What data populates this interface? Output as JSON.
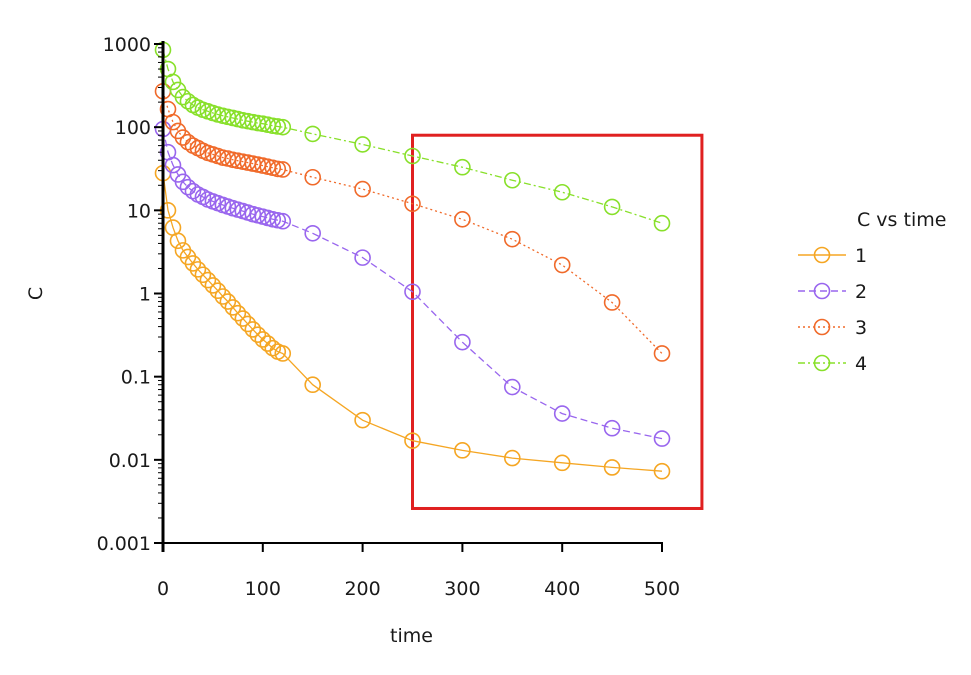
{
  "chart_data": {
    "type": "line",
    "title": "",
    "xlabel": "time",
    "ylabel": "C",
    "xlim": [
      0,
      500
    ],
    "ylim": [
      0.001,
      1000
    ],
    "yscale": "log",
    "x_ticks": [
      0,
      100,
      200,
      300,
      400,
      500
    ],
    "x_tick_labels": [
      "0",
      "100",
      "200",
      "300",
      "400",
      "500"
    ],
    "y_ticks": [
      0.001,
      0.01,
      0.1,
      1,
      10,
      100,
      1000
    ],
    "y_tick_labels": [
      "0.001",
      "0.01",
      "0.1",
      "1",
      "10",
      "100",
      "1000"
    ],
    "grid": false,
    "legend": {
      "title": "C vs time",
      "placement": "right"
    },
    "highlight_box": {
      "color": "#e02020",
      "x_range": [
        250,
        540
      ],
      "y_range": [
        0.0026,
        80
      ]
    },
    "series": [
      {
        "name": "1",
        "color": "#f5a623",
        "line_style": "solid",
        "x": [
          0,
          5,
          10,
          15,
          20,
          25,
          30,
          35,
          40,
          45,
          50,
          55,
          60,
          65,
          70,
          75,
          80,
          85,
          90,
          95,
          100,
          105,
          110,
          115,
          120,
          150,
          200,
          250,
          300,
          350,
          400,
          450,
          500
        ],
        "y": [
          28,
          10,
          6.2,
          4.3,
          3.3,
          2.75,
          2.3,
          1.95,
          1.68,
          1.45,
          1.25,
          1.08,
          0.92,
          0.8,
          0.68,
          0.58,
          0.5,
          0.43,
          0.37,
          0.32,
          0.28,
          0.25,
          0.22,
          0.2,
          0.19,
          0.08,
          0.03,
          0.017,
          0.013,
          0.0105,
          0.0092,
          0.0081,
          0.0073
        ]
      },
      {
        "name": "2",
        "color": "#9966ee",
        "line_style": "dashed",
        "x": [
          0,
          5,
          10,
          15,
          20,
          25,
          30,
          35,
          40,
          45,
          50,
          55,
          60,
          65,
          70,
          75,
          80,
          85,
          90,
          95,
          100,
          105,
          110,
          115,
          120,
          150,
          200,
          250,
          300,
          350,
          400,
          450,
          500
        ],
        "y": [
          95,
          50,
          35,
          27,
          22,
          19,
          17,
          15.5,
          14.5,
          13.5,
          12.8,
          12.2,
          11.6,
          11.1,
          10.6,
          10.2,
          9.8,
          9.4,
          9.0,
          8.7,
          8.4,
          8.1,
          7.8,
          7.6,
          7.4,
          5.3,
          2.7,
          1.05,
          0.26,
          0.075,
          0.036,
          0.024,
          0.018
        ]
      },
      {
        "name": "3",
        "color": "#f06a2a",
        "line_style": "dotted",
        "x": [
          0,
          5,
          10,
          15,
          20,
          25,
          30,
          35,
          40,
          45,
          50,
          55,
          60,
          65,
          70,
          75,
          80,
          85,
          90,
          95,
          100,
          105,
          110,
          115,
          120,
          150,
          200,
          250,
          300,
          350,
          400,
          450,
          500
        ],
        "y": [
          270,
          165,
          115,
          90,
          75,
          66,
          60,
          56,
          52,
          49,
          47,
          45,
          43,
          42,
          40.5,
          39.5,
          38.5,
          37.5,
          36.5,
          35.5,
          34.5,
          33.5,
          32.5,
          31.5,
          31,
          25,
          18,
          12,
          7.8,
          4.5,
          2.2,
          0.78,
          0.19
        ]
      },
      {
        "name": "4",
        "color": "#88e02a",
        "line_style": "dashdot",
        "x": [
          0,
          5,
          10,
          15,
          20,
          25,
          30,
          35,
          40,
          45,
          50,
          55,
          60,
          65,
          70,
          75,
          80,
          85,
          90,
          95,
          100,
          105,
          110,
          115,
          120,
          150,
          200,
          250,
          300,
          350,
          400,
          450,
          500
        ],
        "y": [
          850,
          500,
          350,
          280,
          230,
          205,
          185,
          172,
          162,
          155,
          148,
          142,
          137,
          133,
          129,
          125,
          121,
          118,
          115,
          112,
          110,
          107,
          104,
          102,
          100,
          83,
          62,
          45,
          33,
          23,
          16.5,
          11,
          7
        ]
      }
    ]
  }
}
